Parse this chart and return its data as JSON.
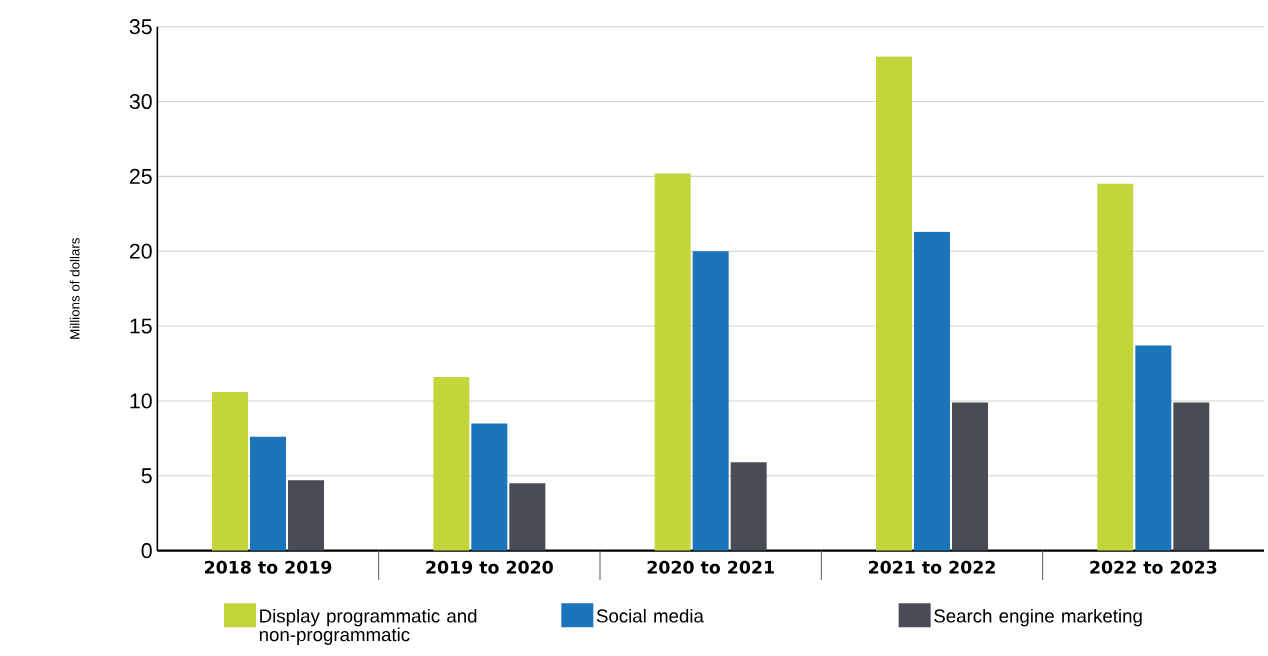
{
  "chart_data": {
    "type": "bar",
    "ylabel": "Millions of dollars",
    "categories": [
      "2018 to 2019",
      "2019 to 2020",
      "2020 to 2021",
      "2021 to 2022",
      "2022 to 2023"
    ],
    "series": [
      {
        "name": "Display programmatic and non-programmatic",
        "color": "#c2d63c",
        "values": [
          10.6,
          11.6,
          25.2,
          33.0,
          24.5
        ]
      },
      {
        "name": "Social media",
        "color": "#1b75bb",
        "values": [
          7.6,
          8.5,
          20.0,
          21.3,
          13.7
        ]
      },
      {
        "name": "Search engine marketing",
        "color": "#4a4c55",
        "values": [
          4.7,
          4.5,
          5.9,
          9.9,
          9.9
        ]
      }
    ],
    "ylim": [
      0,
      35
    ],
    "yticks": [
      0,
      5,
      10,
      15,
      20,
      25,
      30,
      35
    ],
    "grid": "y",
    "legend": "bottom"
  }
}
